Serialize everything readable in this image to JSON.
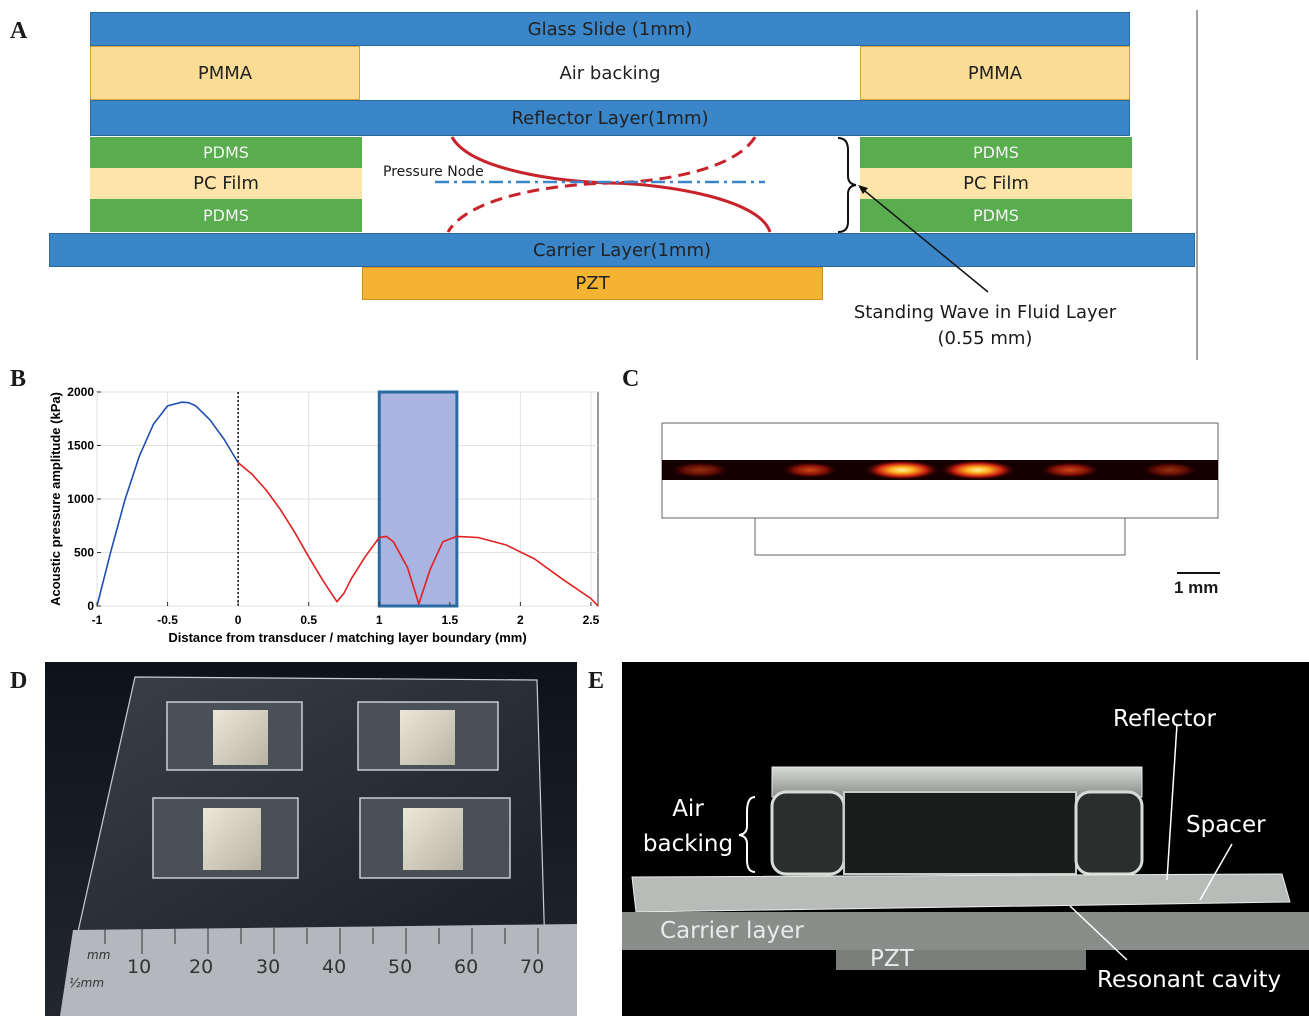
{
  "panels": {
    "a": "A",
    "b": "B",
    "c": "C",
    "d": "D",
    "e": "E"
  },
  "panel_a": {
    "glass_slide": "Glass Slide (1mm)",
    "pmma": "PMMA",
    "air_backing": "Air backing",
    "reflector": "Reflector Layer(1mm)",
    "pdms": "PDMS",
    "pc_film": "PC Film",
    "pressure_node": "Pressure Node",
    "carrier": "Carrier Layer(1mm)",
    "pzt": "PZT",
    "standing_wave_line1": "Standing Wave in Fluid Layer",
    "standing_wave_line2": "(0.55 mm)"
  },
  "chart_data": {
    "type": "line",
    "xlabel": "Distance from transducer / matching layer boundary (mm)",
    "ylabel": "Acoustic pressure amplitude (kPa)",
    "xlim": [
      -1,
      2.55
    ],
    "ylim": [
      0,
      2000
    ],
    "xticks": [
      -1,
      -0.5,
      0,
      0.5,
      1,
      1.5,
      2,
      2.5
    ],
    "yticks": [
      0,
      500,
      1000,
      1500,
      2000
    ],
    "shaded_region": [
      1.0,
      1.55
    ],
    "boundary_line_x": 0,
    "series": [
      {
        "color": "#1f4fb3",
        "x": [
          -1,
          -0.9,
          -0.8,
          -0.7,
          -0.6,
          -0.5,
          -0.4,
          -0.35,
          -0.3,
          -0.2,
          -0.1,
          0
        ],
        "y": [
          0,
          520,
          1000,
          1400,
          1700,
          1870,
          1905,
          1900,
          1870,
          1740,
          1560,
          1340
        ]
      },
      {
        "color": "#e02020",
        "x": [
          0,
          0.1,
          0.2,
          0.3,
          0.4,
          0.5,
          0.6,
          0.7,
          0.75,
          0.8,
          0.9,
          1.0,
          1.05,
          1.1,
          1.2,
          1.28,
          1.36,
          1.45,
          1.55,
          1.7,
          1.9,
          2.1,
          2.3,
          2.5,
          2.55
        ],
        "y": [
          1340,
          1230,
          1080,
          900,
          690,
          460,
          240,
          40,
          120,
          250,
          460,
          640,
          650,
          600,
          360,
          20,
          340,
          600,
          650,
          640,
          570,
          440,
          250,
          70,
          0
        ]
      }
    ]
  },
  "panel_c": {
    "scale_label": "1 mm"
  },
  "panel_d": {
    "ruler_unit_top": "mm",
    "ruler_unit_bottom": "½mm",
    "ruler_ticks": [
      "10",
      "20",
      "30",
      "40",
      "50",
      "60",
      "70"
    ]
  },
  "panel_e": {
    "reflector": "Reflector",
    "air_backing_line1": "Air",
    "air_backing_line2": "backing",
    "spacer": "Spacer",
    "carrier": "Carrier layer",
    "pzt": "PZT",
    "resonant": "Resonant cavity"
  }
}
